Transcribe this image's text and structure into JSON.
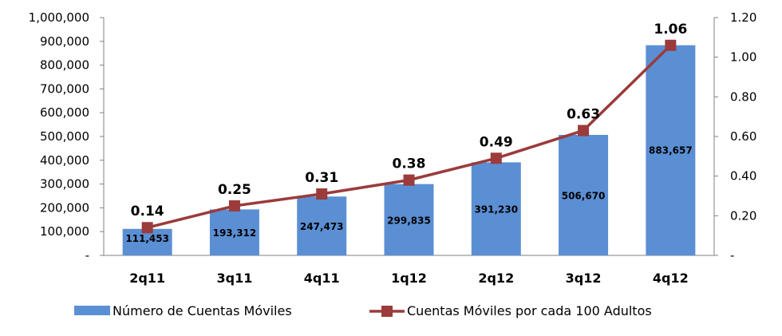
{
  "chart_data": {
    "type": "bar+line",
    "categories": [
      "2q11",
      "3q11",
      "4q11",
      "1q12",
      "2q12",
      "3q12",
      "4q12"
    ],
    "series": [
      {
        "name": "Número de Cuentas Móviles",
        "type": "bar",
        "axis": "left",
        "color": "#5B8FD4",
        "values": [
          111453,
          193312,
          247473,
          299835,
          391230,
          506670,
          883657
        ],
        "labels": [
          "111,453",
          "193,312",
          "247,473",
          "299,835",
          "391,230",
          "506,670",
          "883,657"
        ]
      },
      {
        "name": "Cuentas Móviles por cada 100 Adultos",
        "type": "line",
        "axis": "right",
        "color": "#9B3B3B",
        "values": [
          0.14,
          0.25,
          0.31,
          0.38,
          0.49,
          0.63,
          1.06
        ],
        "labels": [
          "0.14",
          "0.25",
          "0.31",
          "0.38",
          "0.49",
          "0.63",
          "1.06"
        ]
      }
    ],
    "y_left": {
      "ylim": [
        0,
        1000000
      ],
      "ticks": [
        0,
        100000,
        200000,
        300000,
        400000,
        500000,
        600000,
        700000,
        800000,
        900000,
        1000000
      ],
      "tick_labels": [
        "-",
        "100,000",
        "200,000",
        "300,000",
        "400,000",
        "500,000",
        "600,000",
        "700,000",
        "800,000",
        "900,000",
        "1,000,000"
      ]
    },
    "y_right": {
      "ylim": [
        0,
        1.2
      ],
      "ticks": [
        0,
        0.2,
        0.4,
        0.6,
        0.8,
        1.0,
        1.2
      ],
      "tick_labels": [
        "-",
        "0.20",
        "0.40",
        "0.60",
        "0.80",
        "1.00",
        "1.20"
      ]
    },
    "grid": false,
    "legend": "bottom",
    "title": "",
    "xlabel": "",
    "ylabel": ""
  }
}
